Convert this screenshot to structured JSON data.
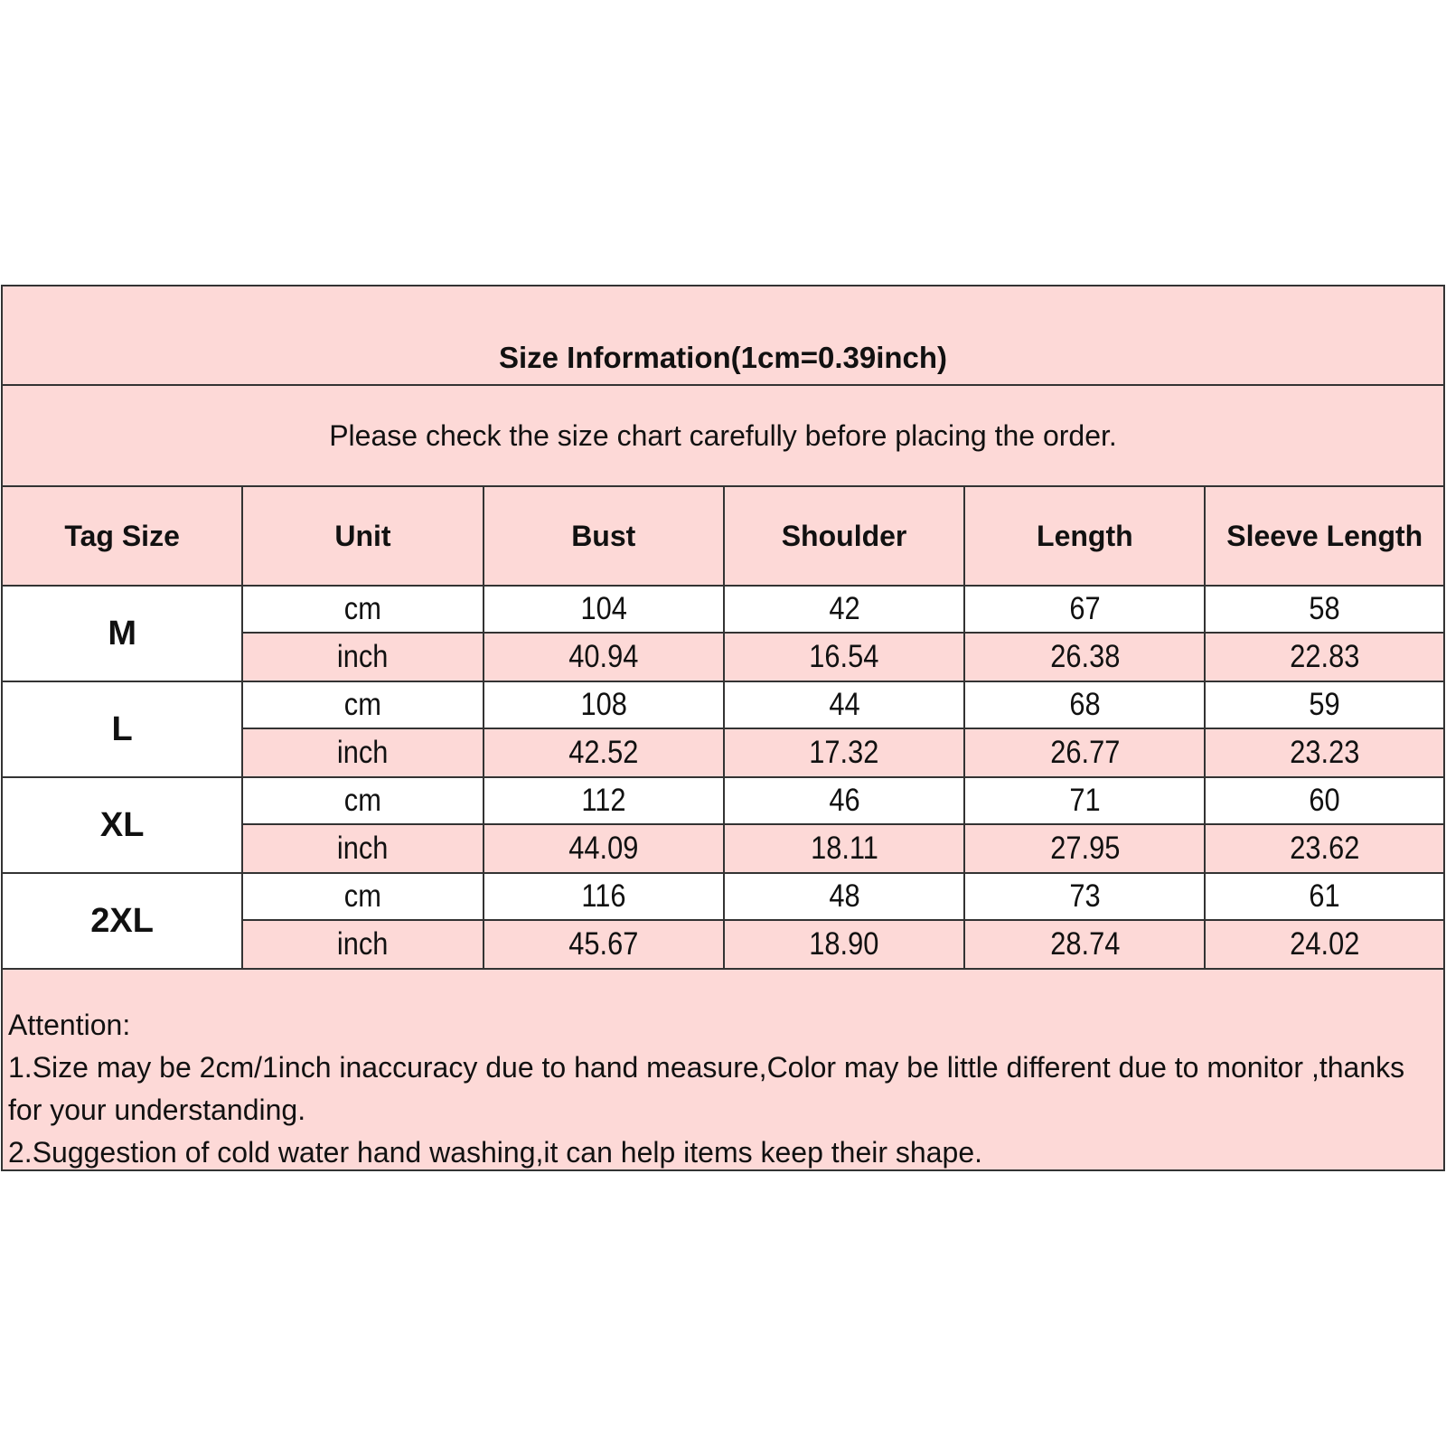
{
  "title": "Size Information(1cm=0.39inch)",
  "subtitle": "Please check the size chart carefully before placing the order.",
  "columns": [
    "Tag Size",
    "Unit",
    "Bust",
    "Shoulder",
    "Length",
    "Sleeve Length"
  ],
  "colors": {
    "pink": "#fdd9d7",
    "border": "#333333"
  },
  "sizes": [
    {
      "tag": "M",
      "rows": [
        [
          "cm",
          "104",
          "42",
          "67",
          "58"
        ],
        [
          "inch",
          "40.94",
          "16.54",
          "26.38",
          "22.83"
        ]
      ]
    },
    {
      "tag": "L",
      "rows": [
        [
          "cm",
          "108",
          "44",
          "68",
          "59"
        ],
        [
          "inch",
          "42.52",
          "17.32",
          "26.77",
          "23.23"
        ]
      ]
    },
    {
      "tag": "XL",
      "rows": [
        [
          "cm",
          "112",
          "46",
          "71",
          "60"
        ],
        [
          "inch",
          "44.09",
          "18.11",
          "27.95",
          "23.62"
        ]
      ]
    },
    {
      "tag": "2XL",
      "rows": [
        [
          "cm",
          "116",
          "48",
          "73",
          "61"
        ],
        [
          "inch",
          "45.67",
          "18.90",
          "28.74",
          "24.02"
        ]
      ]
    }
  ],
  "attention": [
    "Attention:",
    "1.Size may be 2cm/1inch inaccuracy due to hand measure,Color may be little different due to monitor ,thanks for your understanding.",
    "2.Suggestion of cold water hand washing,it can help items keep their shape."
  ]
}
